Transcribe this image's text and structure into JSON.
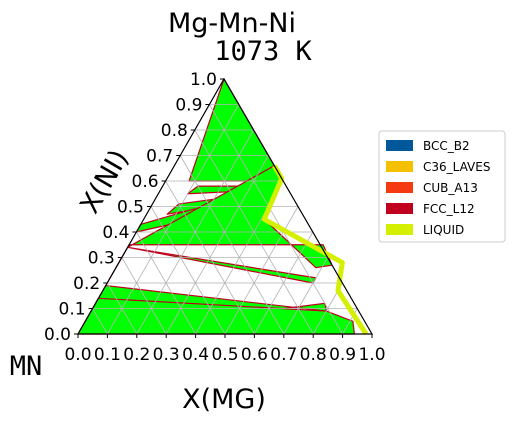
{
  "chart_data": {
    "type": "ternary_phase_diagram",
    "title": "Mg-Mn-Ni",
    "subtitle": "1073 K",
    "xlabel": "X(MG)",
    "ylabel": "X(NI)",
    "origin_label": "MN",
    "xlim": [
      0,
      1
    ],
    "ylim": [
      0,
      1
    ],
    "x_ticks": [
      "0.0",
      "0.1",
      "0.2",
      "0.3",
      "0.4",
      "0.5",
      "0.6",
      "0.7",
      "0.8",
      "0.9",
      "1.0"
    ],
    "y_ticks": [
      "0.0",
      "0.1",
      "0.2",
      "0.3",
      "0.4",
      "0.5",
      "0.6",
      "0.7",
      "0.8",
      "0.9",
      "1.0"
    ],
    "grid": true,
    "legend_position": "right",
    "legend": [
      {
        "name": "BCC_B2",
        "color": "#00589b"
      },
      {
        "name": "C36_LAVES",
        "color": "#f5c000"
      },
      {
        "name": "CUB_A13",
        "color": "#f53a12"
      },
      {
        "name": "FCC_L12",
        "color": "#c0001e"
      },
      {
        "name": "LIQUID",
        "color": "#d4f000"
      }
    ],
    "two_phase_region_color": "#00ff00",
    "boundary_color": "#c0001e",
    "regions": [
      {
        "phase": "green",
        "points": [
          [
            0.0,
            1.0
          ],
          [
            0.34,
            0.66
          ],
          [
            0.31,
            0.6
          ],
          [
            0.15,
            0.6
          ],
          [
            0.08,
            0.6
          ]
        ]
      },
      {
        "phase": "green",
        "points": [
          [
            0.12,
            0.58
          ],
          [
            0.33,
            0.58
          ],
          [
            0.28,
            0.56
          ],
          [
            0.1,
            0.55
          ]
        ]
      },
      {
        "phase": "green",
        "points": [
          [
            0.09,
            0.51
          ],
          [
            0.33,
            0.55
          ],
          [
            0.27,
            0.51
          ],
          [
            0.07,
            0.47
          ]
        ]
      },
      {
        "phase": "green",
        "points": [
          [
            0.0,
            0.4
          ],
          [
            0.37,
            0.51
          ],
          [
            0.15,
            0.49
          ],
          [
            0.0,
            0.43
          ]
        ]
      },
      {
        "phase": "green",
        "points": [
          [
            0.0,
            0.34
          ],
          [
            0.34,
            0.66
          ],
          [
            0.39,
            0.61
          ],
          [
            0.41,
            0.45
          ],
          [
            0.68,
            0.26
          ],
          [
            0.73,
            0.27
          ],
          [
            0.66,
            0.35
          ],
          [
            0.0,
            0.35
          ]
        ]
      },
      {
        "phase": "green",
        "points": [
          [
            0.0,
            0.2
          ],
          [
            0.0,
            0.34
          ],
          [
            0.7,
            0.2
          ],
          [
            0.7,
            0.22
          ],
          [
            0.0,
            0.34
          ]
        ]
      },
      {
        "phase": "green",
        "points": [
          [
            0.0,
            0.0
          ],
          [
            0.0,
            0.19
          ],
          [
            0.8,
            0.09
          ],
          [
            0.78,
            0.12
          ]
        ]
      },
      {
        "phase": "green",
        "points": [
          [
            0.0,
            0.0
          ],
          [
            0.0,
            0.14
          ],
          [
            0.8,
            0.09
          ],
          [
            0.91,
            0.05
          ],
          [
            0.94,
            0.0
          ]
        ]
      }
    ],
    "liquid_band": [
      [
        0.34,
        0.66
      ],
      [
        0.39,
        0.61
      ],
      [
        0.41,
        0.45
      ],
      [
        0.76,
        0.28
      ],
      [
        0.8,
        0.17
      ],
      [
        0.98,
        0.0
      ]
    ]
  }
}
